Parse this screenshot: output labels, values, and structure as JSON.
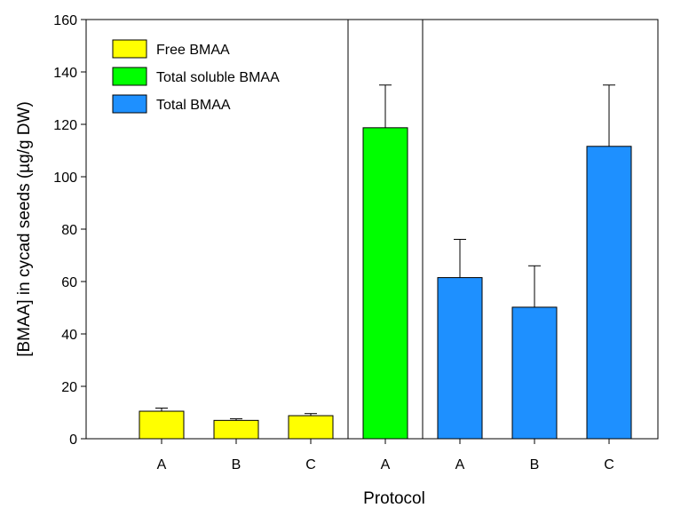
{
  "chart_data": {
    "type": "bar",
    "xlabel": "Protocol",
    "ylabel": "[BMAA] in cycad seeds (µg/g DW)",
    "ylim": [
      0,
      160
    ],
    "yticks": [
      0,
      20,
      40,
      60,
      80,
      100,
      120,
      140,
      160
    ],
    "grid": false,
    "legend_position": "top-left",
    "groups": [
      {
        "series": "Free BMAA",
        "color": "#ffff00",
        "categories": [
          "A",
          "B",
          "C"
        ],
        "values": [
          10.5,
          7.0,
          8.8
        ],
        "errors": [
          1.2,
          0.6,
          0.8
        ]
      },
      {
        "series": "Total soluble BMAA",
        "color": "#00ff00",
        "categories": [
          "A"
        ],
        "values": [
          118.7
        ],
        "errors": [
          16.3
        ]
      },
      {
        "series": "Total BMAA",
        "color": "#1e90ff",
        "categories": [
          "A",
          "B",
          "C"
        ],
        "values": [
          61.5,
          50.2,
          111.6
        ],
        "errors": [
          14.6,
          15.8,
          23.4
        ]
      }
    ],
    "legend": [
      {
        "label": "Free BMAA",
        "color": "#ffff00"
      },
      {
        "label": "Total soluble BMAA",
        "color": "#00ff00"
      },
      {
        "label": "Total BMAA",
        "color": "#1e90ff"
      }
    ]
  }
}
